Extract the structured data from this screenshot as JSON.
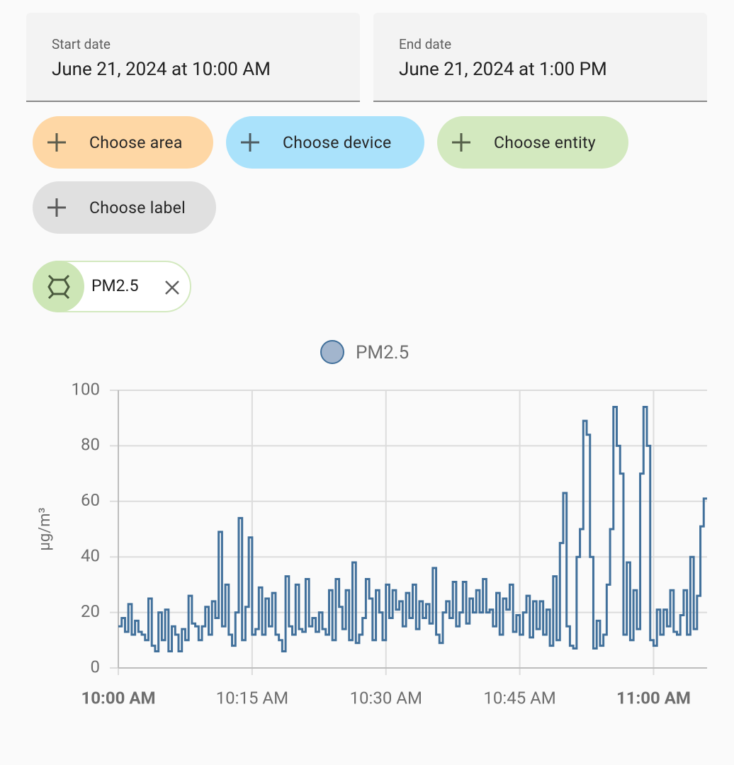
{
  "start_date": {
    "label": "Start date",
    "value": "June 21, 2024 at 10:00 AM"
  },
  "end_date": {
    "label": "End date",
    "value": "June 21, 2024 at 1:00 PM"
  },
  "target_chips": [
    "Choose area",
    "Choose device",
    "Choose entity",
    "Choose label"
  ],
  "selected_entity": "PM2.5",
  "chart_data": {
    "type": "line",
    "step": true,
    "y_label": "µg/m³",
    "xlim": [
      0,
      66
    ],
    "xticks": [
      {
        "value": 0,
        "label": "10:00 AM",
        "bold": true
      },
      {
        "value": 15,
        "label": "10:15 AM"
      },
      {
        "value": 30,
        "label": "10:30 AM"
      },
      {
        "value": 45,
        "label": "10:45 AM"
      },
      {
        "value": 60,
        "label": "11:00 AM",
        "bold": true
      }
    ],
    "ylim": [
      0,
      100
    ],
    "yticks": [
      0,
      20,
      40,
      60,
      80,
      100
    ],
    "grid": true,
    "legend": "top",
    "x": [
      0,
      0.375,
      0.75,
      1.125,
      1.5,
      1.875,
      2.25,
      2.625,
      3,
      3.375,
      3.75,
      4.125,
      4.5,
      4.875,
      5.25,
      5.625,
      6,
      6.375,
      6.75,
      7.125,
      7.5,
      7.875,
      8.25,
      8.625,
      9,
      9.375,
      9.75,
      10.125,
      10.5,
      10.875,
      11.25,
      11.625,
      12,
      12.375,
      12.75,
      13.125,
      13.5,
      13.875,
      14.25,
      14.625,
      15,
      15.375,
      15.75,
      16.125,
      16.5,
      16.875,
      17.25,
      17.625,
      18,
      18.375,
      18.75,
      19.125,
      19.5,
      19.875,
      20.25,
      20.625,
      21,
      21.375,
      21.75,
      22.125,
      22.5,
      22.875,
      23.25,
      23.625,
      24,
      24.375,
      24.75,
      25.125,
      25.5,
      25.875,
      26.25,
      26.625,
      27,
      27.375,
      27.75,
      28.125,
      28.5,
      28.875,
      29.25,
      29.625,
      30,
      30.375,
      30.75,
      31.125,
      31.5,
      31.875,
      32.25,
      32.625,
      33,
      33.375,
      33.75,
      34.125,
      34.5,
      34.875,
      35.25,
      35.625,
      36,
      36.375,
      36.75,
      37.125,
      37.5,
      37.875,
      38.25,
      38.625,
      39,
      39.375,
      39.75,
      40.125,
      40.5,
      40.875,
      41.25,
      41.625,
      42,
      42.375,
      42.75,
      43.125,
      43.5,
      43.875,
      44.25,
      44.625,
      45,
      45.375,
      45.75,
      46.125,
      46.5,
      46.875,
      47.25,
      47.625,
      48,
      48.375,
      48.75,
      49.125,
      49.5,
      49.875,
      50.25,
      50.625,
      51,
      51.375,
      51.75,
      52.125,
      52.5,
      52.875,
      53.25,
      53.625,
      54,
      54.375,
      54.75,
      55.125,
      55.5,
      55.875,
      56.25,
      56.625,
      57,
      57.375,
      57.75,
      58.125,
      58.5,
      58.875,
      59.25,
      59.625,
      60,
      60.375,
      60.75,
      61.125,
      61.5,
      61.875,
      62.25,
      62.625,
      63,
      63.375,
      63.75,
      64.125,
      64.5,
      64.875,
      65.25,
      65.625
    ],
    "series": [
      {
        "name": "PM2.5",
        "color": "#41709b",
        "fill": "#a2b5cd",
        "values": [
          15,
          18,
          13,
          23,
          12,
          17,
          13,
          12,
          10,
          25,
          8,
          6,
          20,
          10,
          21,
          6,
          15,
          12,
          6,
          14,
          10,
          26,
          16,
          15,
          10,
          15,
          22,
          12,
          24,
          18,
          49,
          15,
          30,
          12,
          8,
          20,
          54,
          10,
          22,
          47,
          12,
          14,
          29,
          12,
          25,
          15,
          27,
          12,
          10,
          6,
          33,
          15,
          12,
          30,
          14,
          13,
          32,
          15,
          18,
          13,
          20,
          14,
          12,
          28,
          10,
          32,
          22,
          14,
          28,
          10,
          38,
          9,
          12,
          18,
          32,
          25,
          10,
          28,
          20,
          10,
          30,
          18,
          28,
          21,
          24,
          15,
          27,
          18,
          30,
          14,
          24,
          18,
          23,
          16,
          36,
          12,
          9,
          20,
          24,
          18,
          31,
          15,
          20,
          31,
          16,
          25,
          20,
          28,
          20,
          32,
          20,
          21,
          15,
          27,
          12,
          25,
          21,
          30,
          13,
          19,
          12,
          20,
          26,
          11,
          24,
          14,
          24,
          12,
          21,
          8,
          33,
          10,
          45,
          63,
          15,
          8,
          7,
          40,
          50,
          89,
          84,
          40,
          7,
          17,
          8,
          12,
          30,
          50,
          94,
          80,
          70,
          12,
          38,
          10,
          28,
          14,
          70,
          94,
          80,
          10,
          8,
          21,
          12,
          21,
          15,
          28,
          13,
          12,
          19,
          28,
          12,
          40,
          14,
          26,
          51,
          61
        ]
      }
    ]
  }
}
